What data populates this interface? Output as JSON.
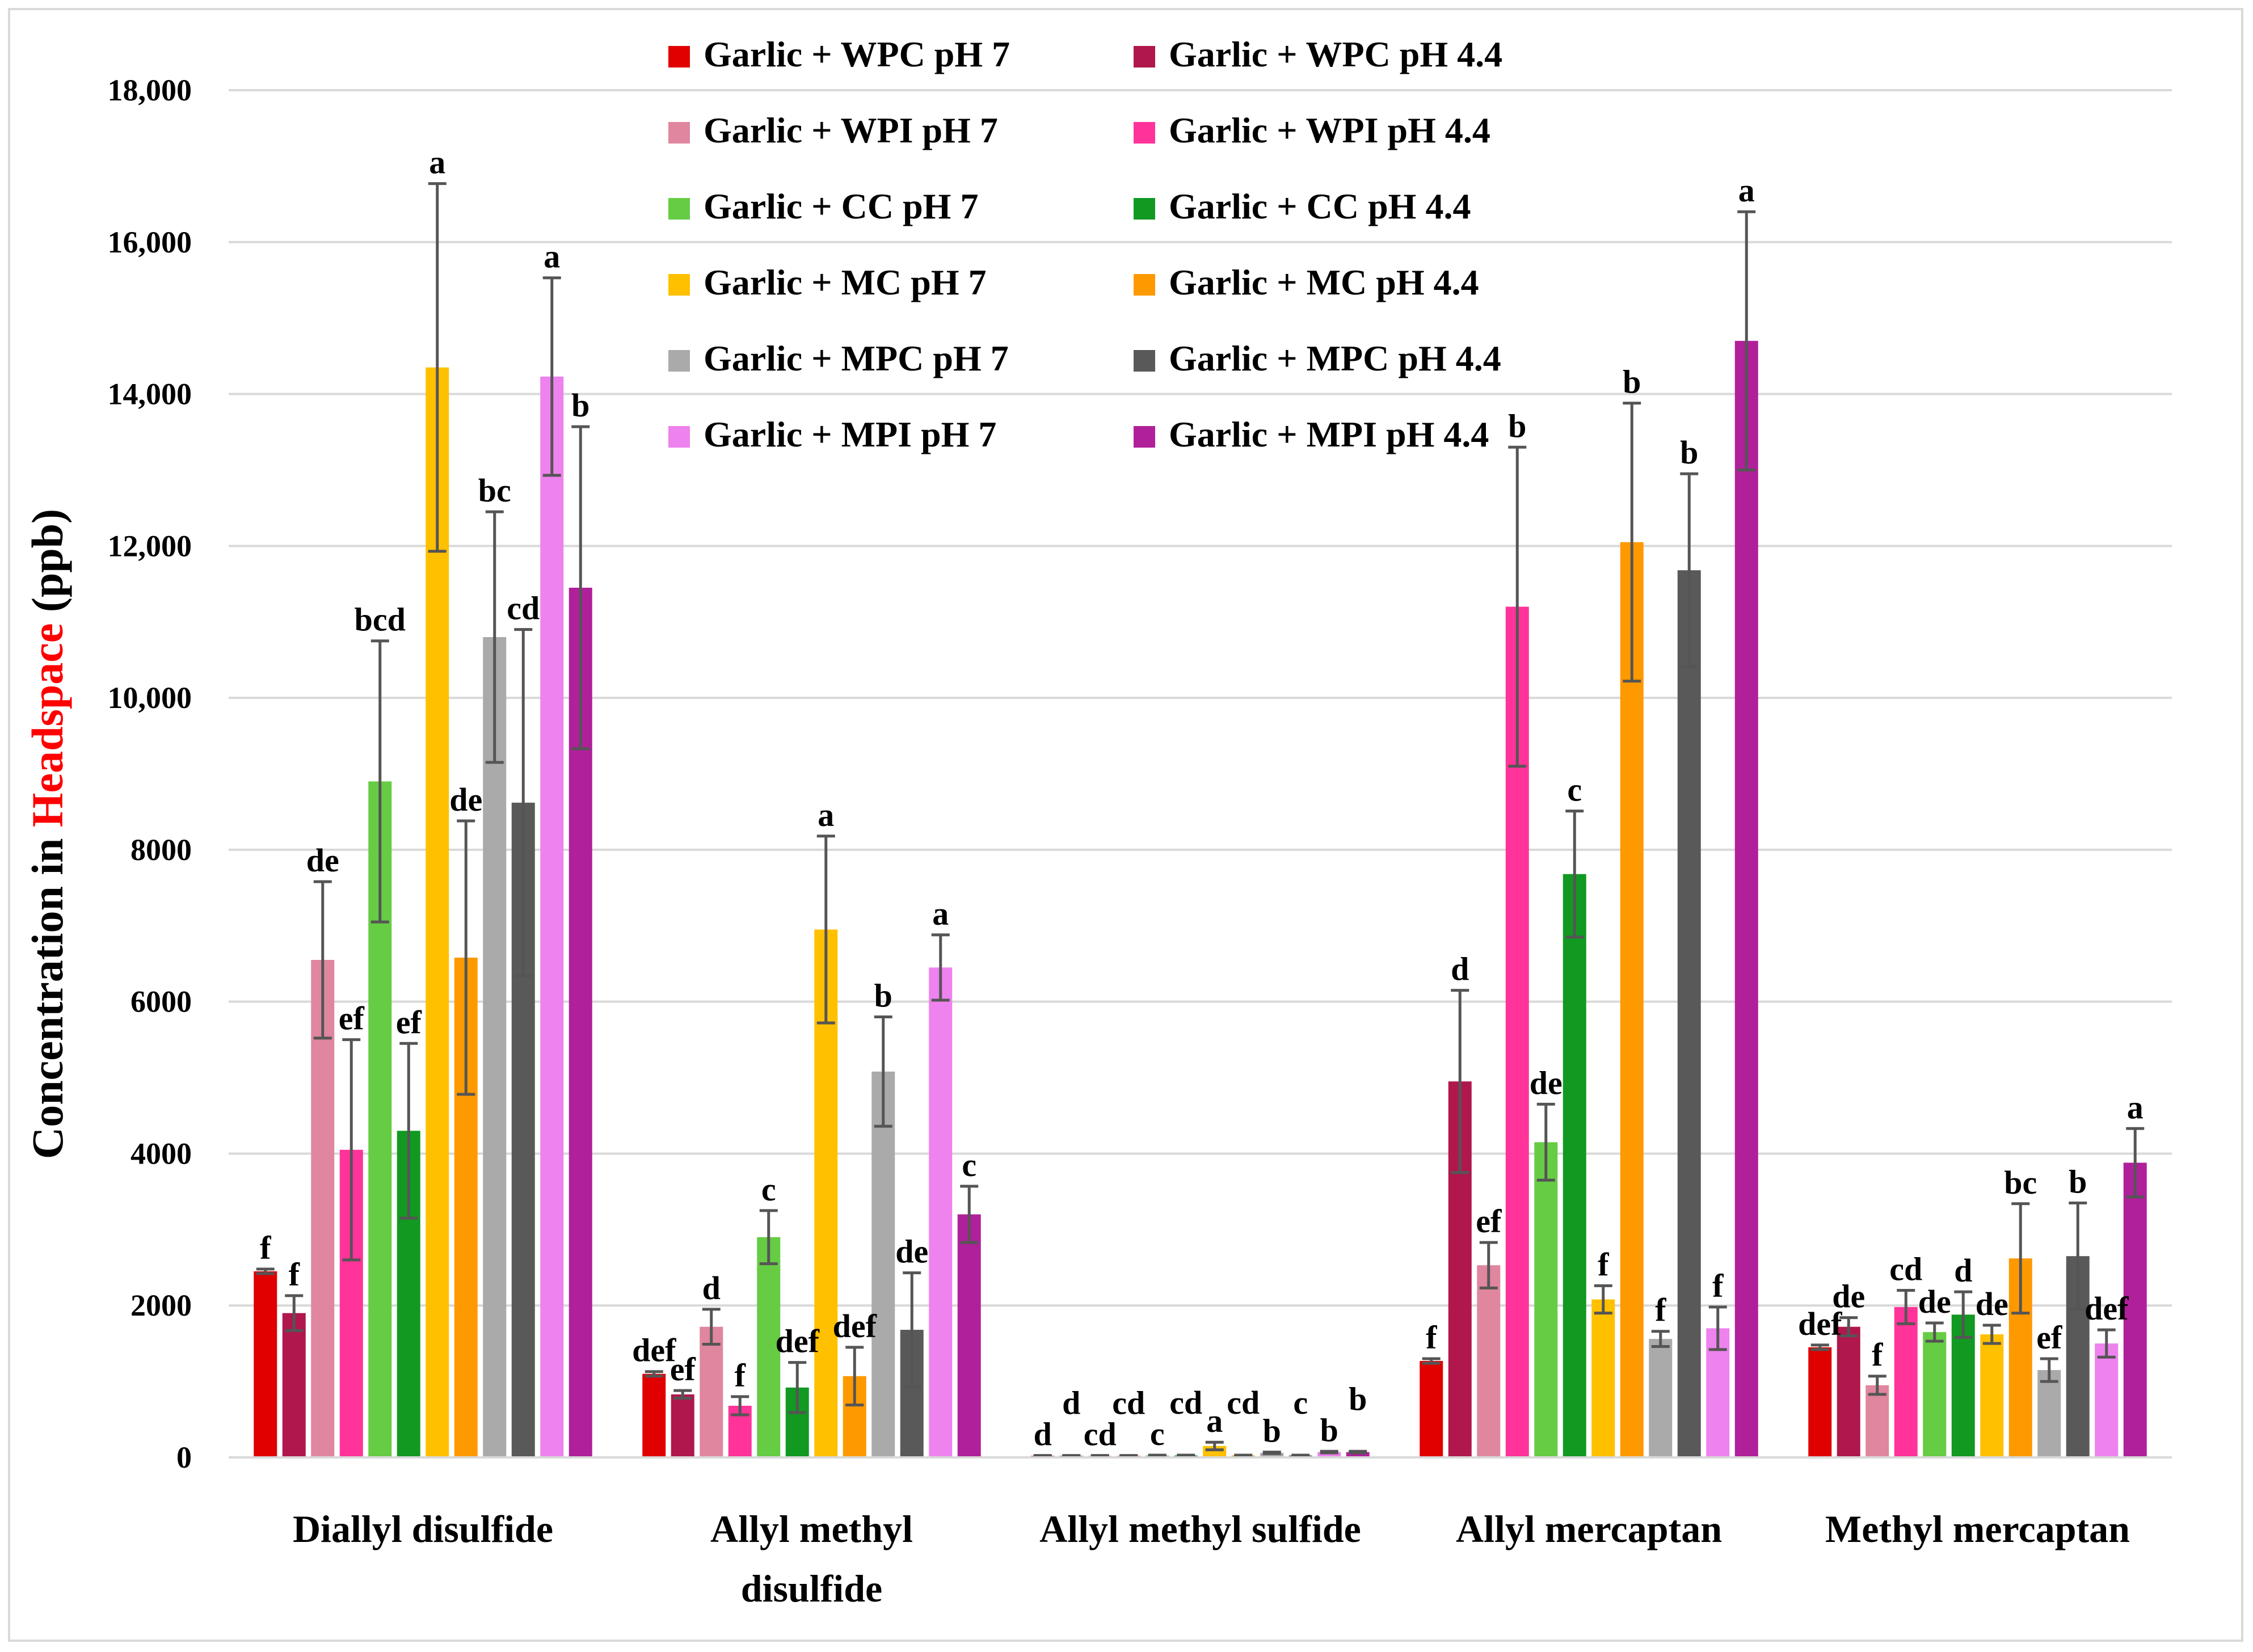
{
  "chart_data": {
    "type": "bar",
    "title": "",
    "xlabel": "",
    "ylabel_prefix": "Concentration in ",
    "ylabel_highlight": "Headspace",
    "ylabel_suffix": " (ppb)",
    "ylabel_highlight_color": "#ff0000",
    "ylim": [
      0,
      18000
    ],
    "y_ticks": [
      0,
      2000,
      4000,
      6000,
      8000,
      10000,
      12000,
      14000,
      16000,
      18000
    ],
    "y_tick_labels": [
      "0",
      "2000",
      "4000",
      "6000",
      "8000",
      "10,000",
      "12,000",
      "14,000",
      "16,000",
      "18,000"
    ],
    "grid": true,
    "legend_position": "top-center",
    "categories": [
      [
        "Diallyl disulfide"
      ],
      [
        "Allyl methyl",
        "disulfide"
      ],
      [
        "Allyl methyl sulfide"
      ],
      [
        "Allyl mercaptan"
      ],
      [
        "Methyl mercaptan"
      ]
    ],
    "series": [
      {
        "name": "Garlic + WPC pH 7",
        "color": "#e00000",
        "values": [
          2450,
          1100,
          20,
          1270,
          1450
        ],
        "errors": [
          30,
          30,
          5,
          30,
          30
        ],
        "letters": [
          "f",
          "def",
          "d",
          "f",
          "def"
        ]
      },
      {
        "name": "Garlic + WPC pH 4.4",
        "color": "#b0174d",
        "values": [
          1900,
          830,
          20,
          4950,
          1720
        ],
        "errors": [
          230,
          50,
          5,
          1200,
          120
        ],
        "letters": [
          "f",
          "ef",
          "d",
          "d",
          "de"
        ]
      },
      {
        "name": "Garlic + WPI pH 7",
        "color": "#e0869f",
        "values": [
          6550,
          1720,
          20,
          2530,
          950
        ],
        "errors": [
          1030,
          230,
          5,
          300,
          120
        ],
        "letters": [
          "de",
          "d",
          "cd",
          "ef",
          "f"
        ]
      },
      {
        "name": "Garlic + WPI pH 4.4",
        "color": "#ff3399",
        "values": [
          4050,
          680,
          20,
          11200,
          1980
        ],
        "errors": [
          1450,
          120,
          5,
          2100,
          220
        ],
        "letters": [
          "ef",
          "f",
          "cd",
          "b",
          "cd"
        ]
      },
      {
        "name": "Garlic + CC pH 7",
        "color": "#66cc44",
        "values": [
          8900,
          2900,
          25,
          4150,
          1650
        ],
        "errors": [
          1850,
          350,
          5,
          500,
          120
        ],
        "letters": [
          "bcd",
          "c",
          "c",
          "de",
          "de"
        ]
      },
      {
        "name": "Garlic + CC pH 4.4",
        "color": "#119922",
        "values": [
          4300,
          920,
          25,
          7680,
          1880
        ],
        "errors": [
          1150,
          330,
          5,
          830,
          300
        ],
        "letters": [
          "ef",
          "def",
          "cd",
          "c",
          "d"
        ]
      },
      {
        "name": "Garlic + MC pH 7",
        "color": "#ffc000",
        "values": [
          14350,
          6950,
          150,
          2080,
          1620
        ],
        "errors": [
          2420,
          1230,
          50,
          180,
          120
        ],
        "letters": [
          "a",
          "a",
          "a",
          "f",
          "de"
        ]
      },
      {
        "name": "Garlic + MC pH 4.4",
        "color": "#ff9900",
        "values": [
          6580,
          1070,
          25,
          12050,
          2620
        ],
        "errors": [
          1800,
          380,
          5,
          1830,
          720
        ],
        "letters": [
          "de",
          "def",
          "cd",
          "b",
          "bc"
        ]
      },
      {
        "name": "Garlic + MPC pH 7",
        "color": "#aaaaaa",
        "values": [
          10800,
          5080,
          60,
          1560,
          1150
        ],
        "errors": [
          1650,
          720,
          10,
          100,
          150
        ],
        "letters": [
          "bc",
          "b",
          "b",
          "f",
          "ef"
        ]
      },
      {
        "name": "Garlic + MPC pH 4.4",
        "color": "#595959",
        "values": [
          8620,
          1680,
          25,
          11680,
          2650
        ],
        "errors": [
          2280,
          750,
          5,
          1270,
          700
        ],
        "letters": [
          "cd",
          "de",
          "c",
          "b",
          "b"
        ]
      },
      {
        "name": "Garlic + MPI pH 7",
        "color": "#ee82ee",
        "values": [
          14230,
          6450,
          70,
          1700,
          1500
        ],
        "errors": [
          1300,
          430,
          10,
          280,
          180
        ],
        "letters": [
          "a",
          "a",
          "b",
          "f",
          "def"
        ]
      },
      {
        "name": "Garlic + MPI pH 4.4",
        "color": "#b0209a",
        "values": [
          11450,
          3200,
          70,
          14700,
          3880
        ],
        "errors": [
          2120,
          370,
          10,
          1700,
          450
        ],
        "letters": [
          "b",
          "c",
          "b",
          "a",
          "a"
        ]
      }
    ]
  }
}
